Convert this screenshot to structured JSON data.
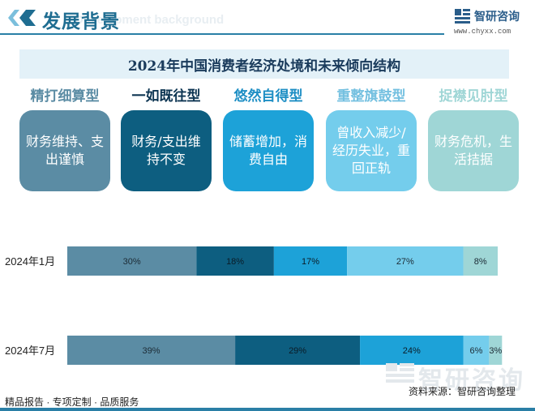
{
  "header": {
    "title": "发展背景",
    "subtitle_en": "Development background",
    "brand": "智研咨询",
    "url": "www.chyxx.com"
  },
  "banner": {
    "title": "2024年中国消费者经济处境和未来倾向结构"
  },
  "types": [
    {
      "label": "精打细算型",
      "desc": "财务维持、支出谨慎",
      "color": "#5b8ca4"
    },
    {
      "label": "一如既往型",
      "desc": "财务/支出维持不变",
      "color": "#0d5e80"
    },
    {
      "label": "悠然自得型",
      "desc": "储蓄增加，消费自由",
      "color": "#1da2d8"
    },
    {
      "label": "重整旗鼓型",
      "desc": "曾收入减少/经历失业，重回正轨",
      "color": "#74cdec"
    },
    {
      "label": "捉襟见肘型",
      "desc": "财务危机，生活拮据",
      "color": "#9fd6d6"
    }
  ],
  "chart_data": {
    "type": "bar",
    "orientation": "horizontal",
    "stacked": true,
    "percent": true,
    "categories": [
      "2024年1月",
      "2024年7月"
    ],
    "series": [
      {
        "name": "精打细算型",
        "values": [
          30,
          39
        ],
        "color": "#5b8ca4"
      },
      {
        "name": "一如既往型",
        "values": [
          18,
          29
        ],
        "color": "#0d5e80"
      },
      {
        "name": "悠然自得型",
        "values": [
          17,
          24
        ],
        "color": "#1da2d8"
      },
      {
        "name": "重整旗鼓型",
        "values": [
          27,
          6
        ],
        "color": "#74cdec"
      },
      {
        "name": "捉襟见肘型",
        "values": [
          8,
          3
        ],
        "color": "#9fd6d6"
      }
    ],
    "value_suffix": "%",
    "title": "",
    "xlabel": "",
    "ylabel": "",
    "xlim": [
      0,
      100
    ],
    "grid": false,
    "legend": "none"
  },
  "footer": {
    "left": "精品报告 · 专项定制 · 品质服务",
    "source": "资料来源：智研咨询整理",
    "watermark": "智研咨询"
  }
}
